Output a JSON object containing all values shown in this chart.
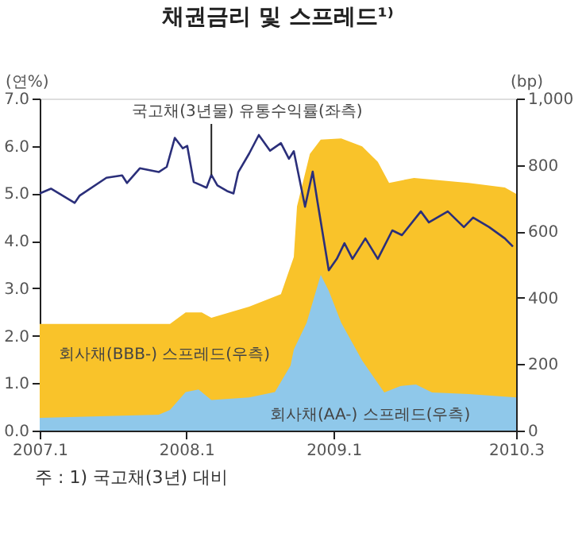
{
  "chart_data": {
    "type": "line",
    "title": "채권금리 및 스프레드¹⁾",
    "ylabel": "(연%)",
    "y2label": "(bp)",
    "xlim": [
      "2007-01-01",
      "2010-03-31"
    ],
    "xticks": [
      {
        "value": "2007-01-01",
        "label": "2007.1"
      },
      {
        "value": "2008-01-01",
        "label": "2008.1"
      },
      {
        "value": "2009-01-01",
        "label": "2009.1"
      },
      {
        "value": "2010-03-31",
        "label": "2010.3"
      }
    ],
    "ylim": [
      0,
      7
    ],
    "yticks": [
      {
        "value": 0,
        "label": "0.0"
      },
      {
        "value": 1,
        "label": "1.0"
      },
      {
        "value": 2,
        "label": "2.0"
      },
      {
        "value": 3,
        "label": "3.0"
      },
      {
        "value": 4,
        "label": "4.0"
      },
      {
        "value": 5,
        "label": "5.0"
      },
      {
        "value": 6,
        "label": "6.0"
      },
      {
        "value": 7,
        "label": "7.0"
      }
    ],
    "y2lim": [
      0,
      1000
    ],
    "y2ticks": [
      0,
      200,
      400,
      600,
      800,
      {
        "value": 1000,
        "label": "1,000"
      }
    ],
    "grid": false,
    "legend": false,
    "annotations": [
      "주 : 1) 국고채(3년) 대비"
    ],
    "series": [
      {
        "name": "회사채(BBB-) 스프레드(우측)",
        "type": "area",
        "axis": "y2",
        "color": "#f9c32a",
        "x": [
          "2007-01-01",
          "2007-06-01",
          "2007-11-21",
          "2007-12-30",
          "2008-02-08",
          "2008-03-03",
          "2008-06-05",
          "2008-08-23",
          "2008-09-24",
          "2008-10-02",
          "2008-11-03",
          "2008-11-30",
          "2009-01-20",
          "2009-03-13",
          "2009-04-21",
          "2009-05-19",
          "2009-07-20",
          "2009-12-03",
          "2010-03-03",
          "2010-03-31"
        ],
        "values": [
          321,
          321,
          321,
          356,
          356,
          340,
          373,
          411,
          523,
          675,
          833,
          876,
          880,
          856,
          809,
          746,
          761,
          746,
          732,
          713
        ]
      },
      {
        "name": "회사채(AA-) 스프레드(우측)",
        "type": "area",
        "axis": "y2",
        "color": "#8fc8ea",
        "x": [
          "2007-01-01",
          "2007-10-24",
          "2007-11-21",
          "2007-12-30",
          "2008-01-31",
          "2008-03-03",
          "2008-06-05",
          "2008-08-08",
          "2008-09-16",
          "2008-09-24",
          "2008-10-26",
          "2008-11-30",
          "2008-12-20",
          "2009-01-20",
          "2009-03-13",
          "2009-05-07",
          "2009-06-16",
          "2009-07-25",
          "2009-09-03",
          "2009-12-03",
          "2010-03-31"
        ],
        "values": [
          38,
          48,
          62,
          116,
          124,
          92,
          100,
          116,
          196,
          244,
          325,
          469,
          421,
          325,
          211,
          115,
          134,
          139,
          115,
          110,
          100
        ]
      },
      {
        "name": "국고채(3년물) 유통수익률(좌측)",
        "type": "line",
        "color": "#2b2f7a",
        "x": [
          "2007-01-01",
          "2007-01-29",
          "2007-03-29",
          "2007-04-10",
          "2007-06-16",
          "2007-07-25",
          "2007-08-06",
          "2007-09-07",
          "2007-10-24",
          "2007-11-13",
          "2007-12-03",
          "2007-12-23",
          "2008-01-03",
          "2008-01-19",
          "2008-02-20",
          "2008-03-03",
          "2008-03-18",
          "2008-04-11",
          "2008-04-27",
          "2008-05-09",
          "2008-06-05",
          "2008-06-29",
          "2008-07-27",
          "2008-08-23",
          "2008-09-12",
          "2008-09-24",
          "2008-10-22",
          "2008-11-10",
          "2008-11-22",
          "2008-12-20",
          "2009-01-09",
          "2009-01-28",
          "2009-02-17",
          "2009-03-21",
          "2009-04-21",
          "2009-05-27",
          "2009-06-20",
          "2009-08-06",
          "2009-08-26",
          "2009-10-12",
          "2009-11-21",
          "2009-12-14",
          "2010-01-23",
          "2010-03-03",
          "2010-03-23"
        ],
        "values": [
          5.0,
          5.1,
          4.8,
          4.95,
          5.33,
          5.38,
          5.22,
          5.53,
          5.45,
          5.56,
          6.17,
          5.95,
          6.0,
          5.24,
          5.12,
          5.39,
          5.17,
          5.05,
          5.0,
          5.45,
          5.84,
          6.23,
          5.9,
          6.06,
          5.73,
          5.89,
          4.72,
          5.46,
          4.82,
          3.38,
          3.62,
          3.95,
          3.62,
          4.05,
          3.62,
          4.22,
          4.12,
          4.62,
          4.39,
          4.62,
          4.29,
          4.49,
          4.29,
          4.05,
          3.88
        ]
      }
    ]
  }
}
